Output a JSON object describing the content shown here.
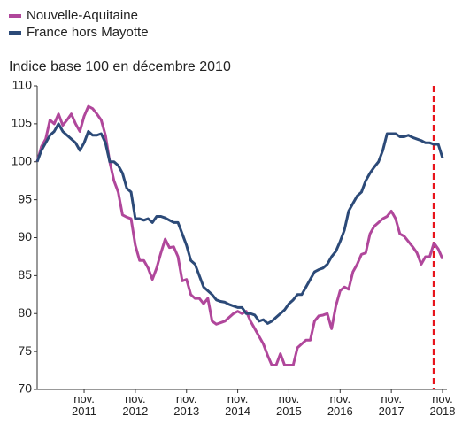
{
  "chart_data": {
    "type": "line",
    "legend": "top-left",
    "subtitle": "Indice base 100 en décembre 2010",
    "categories": [
      null,
      null,
      null,
      null,
      null,
      null,
      null,
      null,
      null,
      null,
      null,
      "nov. 2011",
      null,
      null,
      null,
      null,
      null,
      null,
      null,
      null,
      null,
      null,
      null,
      "nov. 2012",
      null,
      null,
      null,
      null,
      null,
      null,
      null,
      null,
      null,
      null,
      null,
      "nov. 2013",
      null,
      null,
      null,
      null,
      null,
      null,
      null,
      null,
      null,
      null,
      null,
      "nov. 2014",
      null,
      null,
      null,
      null,
      null,
      null,
      null,
      null,
      null,
      null,
      null,
      "nov. 2015",
      null,
      null,
      null,
      null,
      null,
      null,
      null,
      null,
      null,
      null,
      null,
      "nov. 2016",
      null,
      null,
      null,
      null,
      null,
      null,
      null,
      null,
      null,
      null,
      null,
      "nov. 2017",
      null,
      null,
      null,
      null,
      null,
      null,
      null,
      null,
      null,
      null,
      null,
      "nov. 2018"
    ],
    "series": [
      {
        "name": "Nouvelle-Aquitaine",
        "color": "#b0479b",
        "values": [
          100,
          102,
          103,
          105.5,
          105,
          106.3,
          104.8,
          105.5,
          106.3,
          105,
          104,
          106,
          107.3,
          107,
          106.3,
          105.5,
          103.5,
          100,
          97.5,
          96,
          93,
          92.7,
          92.5,
          89,
          87,
          87,
          86,
          84.5,
          86,
          88,
          89.8,
          88.7,
          88.8,
          87.5,
          84.3,
          84.5,
          82.5,
          82,
          82,
          81.3,
          82,
          79,
          78.6,
          78.8,
          79,
          79.5,
          80,
          80.3,
          80,
          80.3,
          79,
          78,
          77,
          76,
          74.5,
          73.2,
          73.2,
          74.7,
          73.2,
          73.2,
          73.2,
          75.5,
          76,
          76.5,
          76.5,
          79,
          79.7,
          79.8,
          80,
          78,
          81,
          83,
          83.5,
          83.2,
          85.5,
          86.5,
          87.8,
          88,
          90.5,
          91.5,
          92,
          92.5,
          92.8,
          93.5,
          92.5,
          90.5,
          90.2,
          89.5,
          88.8,
          88,
          86.5,
          87.5,
          87.5,
          89.3,
          88.5,
          87.2
        ]
      },
      {
        "name": "France hors Mayotte",
        "color": "#2c4a78",
        "values": [
          100,
          101.5,
          102.5,
          103.5,
          104,
          105,
          104,
          103.5,
          103,
          102.5,
          101.5,
          102.5,
          104,
          103.5,
          103.5,
          103.7,
          102.5,
          100,
          100,
          99.5,
          98.5,
          96.5,
          96,
          92.5,
          92.5,
          92.3,
          92.5,
          92,
          92.8,
          92.8,
          92.6,
          92.3,
          92,
          92,
          90.5,
          89,
          87,
          86.5,
          85,
          83.5,
          83,
          82.5,
          81.8,
          81.6,
          81.5,
          81.2,
          81,
          80.8,
          80.8,
          80,
          80,
          79.8,
          79,
          79.2,
          78.7,
          79,
          79.5,
          80,
          80.5,
          81.3,
          81.8,
          82.5,
          82.5,
          83.5,
          84.5,
          85.5,
          85.8,
          86,
          86.5,
          87.5,
          88.2,
          89.5,
          91,
          93.5,
          94.5,
          95.5,
          96,
          97.5,
          98.5,
          99.3,
          100,
          101.5,
          103.7,
          103.7,
          103.7,
          103.3,
          103.3,
          103.5,
          103.2,
          103,
          102.8,
          102.5,
          102.5,
          102.3,
          102.3,
          100.5
        ]
      }
    ],
    "ylim": [
      70,
      110
    ],
    "yticks": [
      70,
      75,
      80,
      85,
      90,
      95,
      100,
      105,
      110
    ],
    "vline": {
      "index": 93,
      "color": "#e8141b",
      "style": "dashed"
    },
    "grid": false
  }
}
